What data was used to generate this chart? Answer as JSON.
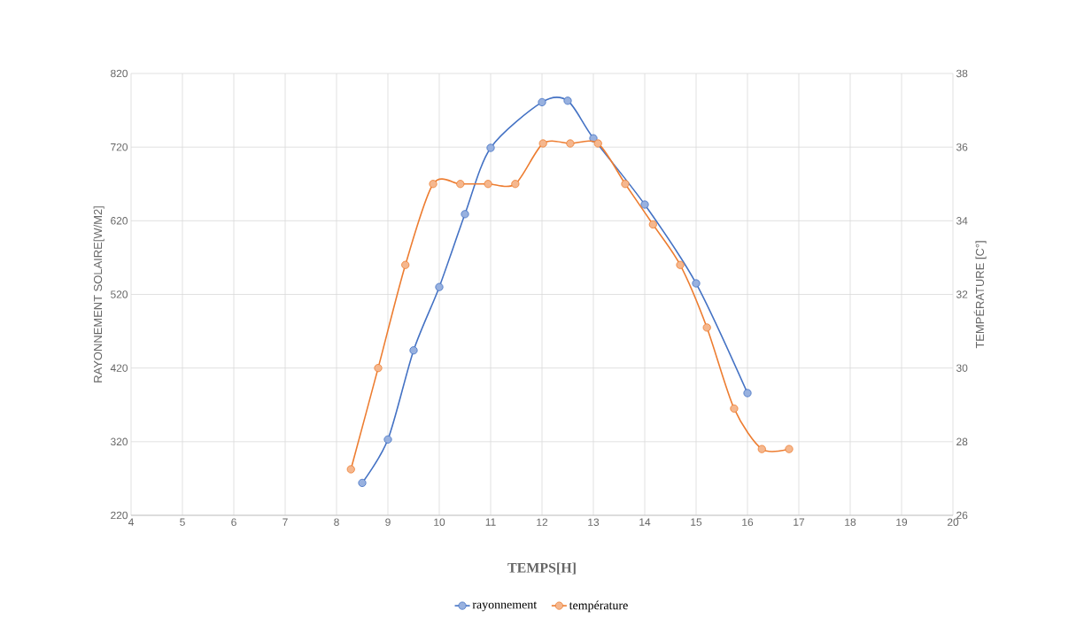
{
  "chart_data": {
    "type": "line",
    "xlabel": "TEMPS[H]",
    "ylabel": "RAYONNEMENT SOLAIRE[W/M2]",
    "y2label": "TEMPÉRATURE [C°]",
    "xlim": [
      4,
      20
    ],
    "xticks": [
      4,
      5,
      6,
      7,
      8,
      9,
      10,
      11,
      12,
      13,
      14,
      15,
      16,
      17,
      18,
      19,
      20
    ],
    "ylim": [
      220,
      820
    ],
    "yticks": [
      220,
      320,
      420,
      520,
      620,
      720,
      820
    ],
    "y2lim": [
      26,
      38
    ],
    "y2ticks": [
      26,
      28,
      30,
      32,
      34,
      36,
      38
    ],
    "grid": true,
    "legend": "bottom",
    "marker": "circle",
    "line_style": "solid",
    "series": [
      {
        "name": "rayonnement",
        "color": "#4472c4",
        "x": [
          8.5,
          9,
          9.5,
          10,
          10.5,
          11,
          12,
          12.5,
          13,
          14,
          15,
          16
        ],
        "values": [
          264,
          323,
          444,
          530,
          629,
          719,
          781,
          783,
          732,
          642,
          535,
          386
        ]
      },
      {
        "name": "température",
        "color": "#ed7d31",
        "axis": "y2",
        "x": [
          8.28,
          8.81,
          9.34,
          9.88,
          10.41,
          10.95,
          11.48,
          12.02,
          12.55,
          13.09,
          13.62,
          14.16,
          14.69,
          15.21,
          15.74,
          16.28,
          16.81
        ],
        "values": [
          27.25,
          30.0,
          32.8,
          35.0,
          35.0,
          35.0,
          35.0,
          36.1,
          36.1,
          36.1,
          35.0,
          33.9,
          32.8,
          31.1,
          28.9,
          27.8,
          27.8
        ]
      }
    ]
  }
}
